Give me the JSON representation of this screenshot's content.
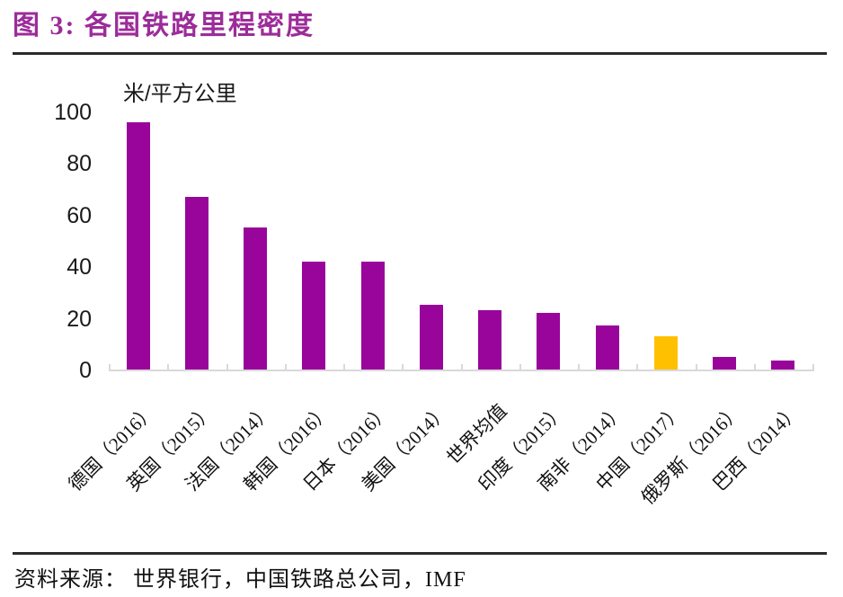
{
  "figure": {
    "title": "图 3: 各国铁路里程密度",
    "source_label": "资料来源： 世界银行，中国铁路总公司，IMF"
  },
  "chart_data": {
    "type": "bar",
    "title": "各国铁路里程密度",
    "unit_label": "米/平方公里",
    "categories": [
      "德国（2016）",
      "英国（2015）",
      "法国（2014）",
      "韩国（2016）",
      "日本（2016）",
      "美国（2014）",
      "世界均值",
      "印度（2015）",
      "南非（2014）",
      "中国（2017）",
      "俄罗斯（2016）",
      "巴西（2014）"
    ],
    "values": [
      96,
      67,
      55,
      42,
      42,
      25,
      23,
      22,
      17,
      13,
      5,
      3.5
    ],
    "ylim": [
      0,
      100
    ],
    "yticks": [
      0,
      20,
      40,
      60,
      80,
      100
    ],
    "grid": false,
    "legend": "none",
    "highlight_index": 9,
    "colors": {
      "bar": "#99049B",
      "bar_highlight": "#FFC000",
      "title_accent": "#9C2C9A",
      "axis_line": "#D9D9D9",
      "text": "#1A1A1A"
    }
  }
}
